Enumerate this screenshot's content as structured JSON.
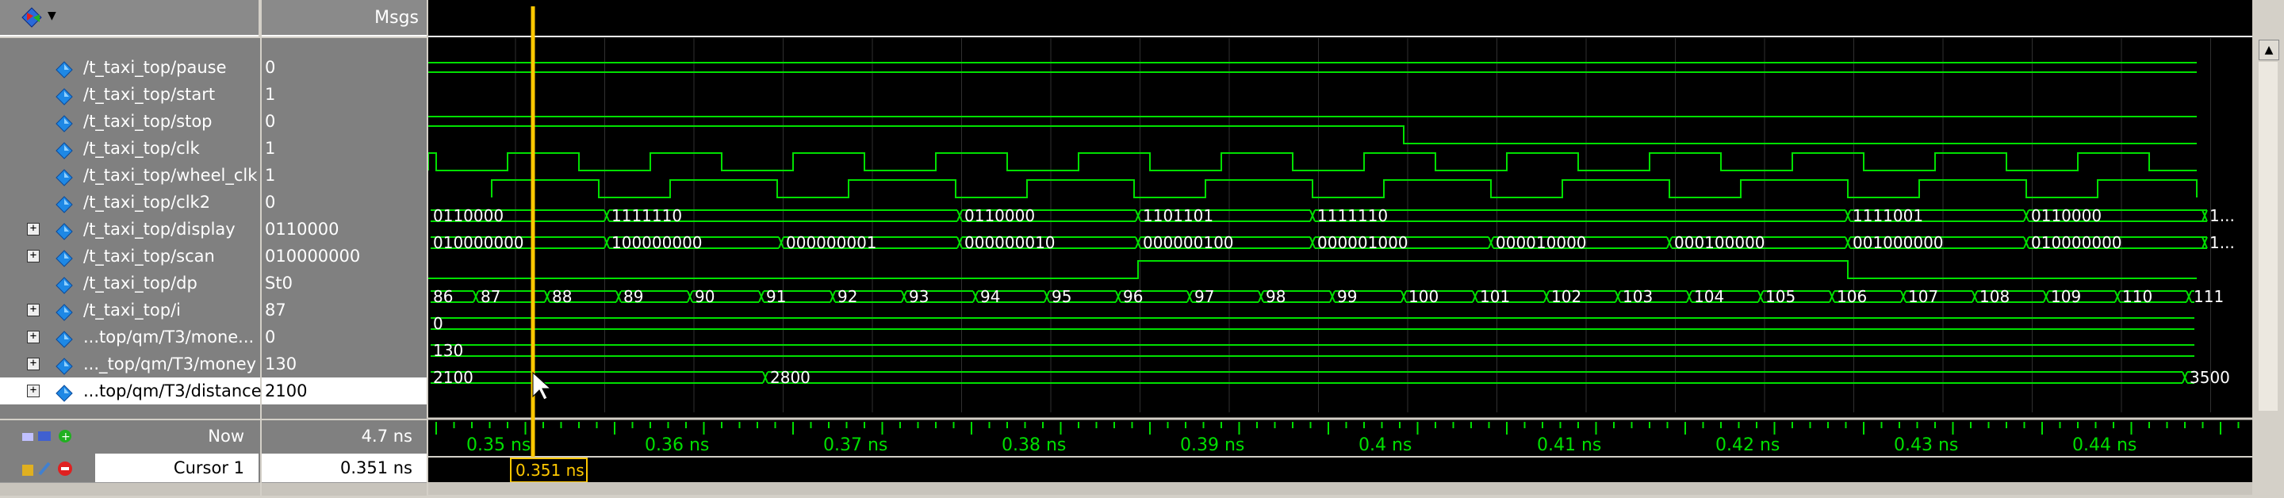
{
  "header": {
    "msgs_label": "Msgs"
  },
  "signals": [
    {
      "name": "/t_taxi_top/pause",
      "value": "0",
      "expandable": false
    },
    {
      "name": "/t_taxi_top/start",
      "value": "1",
      "expandable": false
    },
    {
      "name": "/t_taxi_top/stop",
      "value": "0",
      "expandable": false
    },
    {
      "name": "/t_taxi_top/clk",
      "value": "1",
      "expandable": false
    },
    {
      "name": "/t_taxi_top/wheel_clk",
      "value": "1",
      "expandable": false
    },
    {
      "name": "/t_taxi_top/clk2",
      "value": "0",
      "expandable": false
    },
    {
      "name": "/t_taxi_top/display",
      "value": "0110000",
      "expandable": true
    },
    {
      "name": "/t_taxi_top/scan",
      "value": "010000000",
      "expandable": true
    },
    {
      "name": "/t_taxi_top/dp",
      "value": "St0",
      "expandable": false
    },
    {
      "name": "/t_taxi_top/i",
      "value": "87",
      "expandable": true
    },
    {
      "name": "...top/qm/T3/mone...",
      "value": "0",
      "expandable": true
    },
    {
      "name": "..._top/qm/T3/money",
      "value": "130",
      "expandable": true
    },
    {
      "name": "...top/qm/T3/distance",
      "value": "2100",
      "expandable": true
    }
  ],
  "status": {
    "now_label": "Now",
    "now_value": "4.7 ns",
    "cursor_label": "Cursor 1",
    "cursor_value": "0.351 ns",
    "cursor_flag": "0.351 ns"
  },
  "timeline": {
    "tick_labels": [
      "0.35 ns",
      "0.36 ns",
      "0.37 ns",
      "0.38 ns",
      "0.39 ns",
      "0.4 ns",
      "0.41 ns",
      "0.42 ns",
      "0.43 ns",
      "0.44 ns"
    ]
  },
  "bus_values": {
    "display": [
      "0110000",
      "1111110",
      "0110000",
      "1101101",
      "1111110",
      "1111001",
      "0110000",
      "1..."
    ],
    "scan": [
      "010000000",
      "100000000",
      "000000001",
      "000000010",
      "000000100",
      "000001000",
      "000010000",
      "000100000",
      "001000000",
      "010000000",
      "1..."
    ],
    "i": [
      "86",
      "87",
      "88",
      "89",
      "90",
      "91",
      "92",
      "93",
      "94",
      "95",
      "96",
      "97",
      "98",
      "99",
      "100",
      "101",
      "102",
      "103",
      "104",
      "105",
      "106",
      "107",
      "108",
      "109",
      "110",
      "111"
    ],
    "mone": [
      "0"
    ],
    "money": [
      "130"
    ],
    "distance": [
      "2100",
      "2800",
      "3500"
    ]
  },
  "colors": {
    "wave": "#00e000",
    "cursor": "#ffc800",
    "background": "#000000"
  }
}
